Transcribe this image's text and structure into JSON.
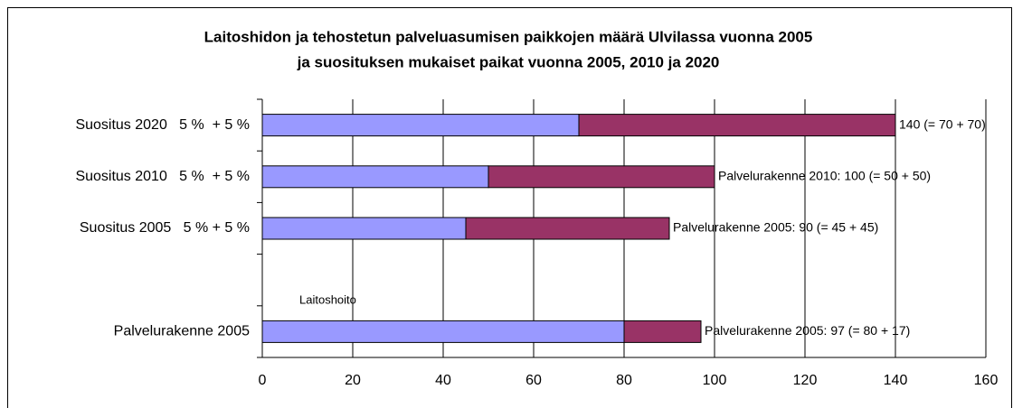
{
  "chart_data": {
    "type": "stacked-barh",
    "title": [
      "Laitoshidon ja tehostetun palveluasumisen paikkojen määrä Ulvilassa vuonna 2005",
      "ja suosituksen mukaiset paikat vuonna 2005, 2010 ja 2020"
    ],
    "categories": [
      "Suositus 2020   5 %  + 5 %",
      "Suositus 2010   5 %  + 5 %",
      "Suositus 2005   5 % + 5 %",
      null,
      "Palvelurakenne 2005"
    ],
    "series": [
      {
        "color": "#9999ff",
        "values": [
          70,
          50,
          45,
          null,
          80
        ]
      },
      {
        "color": "#993366",
        "values": [
          70,
          50,
          45,
          null,
          17
        ]
      }
    ],
    "bar_labels": [
      "140 (= 70 + 70)",
      "Palvelurakenne 2010: 100 (= 50 + 50)",
      "Palvelurakenne 2005: 90 (= 45 + 45)",
      null,
      "Palvelurakenne 2005: 97 (= 80 + 17)"
    ],
    "annotation": "Laitoshoito",
    "xlim": [
      0,
      160
    ],
    "xticks": [
      0,
      20,
      40,
      60,
      80,
      100,
      120,
      140,
      160
    ],
    "grid": true
  }
}
